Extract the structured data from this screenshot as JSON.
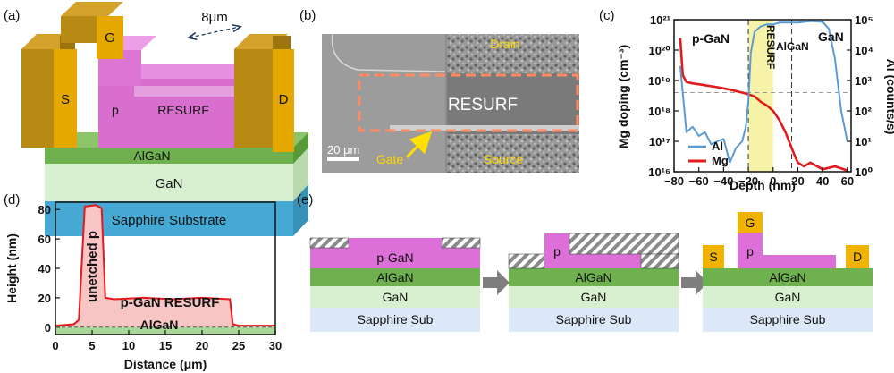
{
  "panels": {
    "a": {
      "letter": "(a)",
      "layers": {
        "substrate": "Sapphire Substrate",
        "gan": "GaN",
        "algan": "AlGaN",
        "resurf": "RESURF",
        "p": "p"
      },
      "contacts": {
        "source": "S",
        "gate": "G",
        "drain": "D"
      },
      "dimension": "8μm",
      "colors": {
        "substrate": "#4fb4dd",
        "gan": "#d8f0cf",
        "algan": "#6fb04f",
        "pgan": "#d86fce",
        "metal": "#f0b400",
        "metal_side": "#b88a13"
      }
    },
    "b": {
      "letter": "(b)",
      "labels": {
        "drain": "Drain",
        "resurf": "RESURF",
        "gate": "Gate",
        "source": "Source"
      },
      "scalebar": "20 μm",
      "colors": {
        "label": "#ffd800",
        "box": "#ff8a65"
      }
    },
    "c": {
      "letter": "(c)",
      "region_labels": {
        "pgan": "p-GaN",
        "resurf": "RESURF",
        "algan": "AlGaN",
        "gan": "GaN"
      },
      "ylabel_left": "Mg doping (cm⁻³)",
      "ylabel_right": "Al (counts/s)",
      "xlabel": "Depth (nm)",
      "left_ticks": [
        "10²¹",
        "10²⁰",
        "10¹⁹",
        "10¹⁸",
        "10¹⁷",
        "10¹⁶"
      ],
      "right_ticks": [
        "10⁵",
        "10⁴",
        "10³",
        "10²",
        "10¹",
        "10⁰"
      ],
      "x_ticks": [
        "−80",
        "−60",
        "−40",
        "−20",
        "0",
        "20",
        "40",
        "60"
      ],
      "legend": [
        {
          "name": "Al",
          "color": "#5b9bd5"
        },
        {
          "name": "Mg",
          "color": "#e31a1c"
        }
      ],
      "resurf_band_color": "#f6f3a8"
    },
    "d": {
      "letter": "(d)",
      "ylabel": "Height (nm)",
      "xlabel": "Distance (μm)",
      "x_ticks": [
        "0",
        "5",
        "10",
        "15",
        "20",
        "25",
        "30"
      ],
      "y_ticks": [
        "0",
        "20",
        "40",
        "60",
        "80"
      ],
      "annotations": {
        "unetched": "unetched p",
        "resurf": "p-GaN RESURF",
        "algan": "AlGaN"
      },
      "colors": {
        "line": "#e31a1c",
        "fill": "#f7c6c4",
        "algan": "#a9d89a"
      }
    },
    "e": {
      "letter": "(e)",
      "step1": {
        "pgan": "p-GaN",
        "algan": "AlGaN",
        "gan": "GaN",
        "substrate": "Sapphire Sub"
      },
      "step2": {
        "p": "p",
        "algan": "AlGaN",
        "gan": "GaN",
        "substrate": "Sapphire Sub"
      },
      "step3": {
        "gate": "G",
        "p": "p",
        "source": "S",
        "drain": "D",
        "algan": "AlGaN",
        "gan": "GaN",
        "substrate": "Sapphire Sub"
      },
      "colors": {
        "pgan": "#dd6fd8",
        "algan": "#6fb04f",
        "gan": "#d8f0cf",
        "substrate": "#dce8f8",
        "metal": "#f0b400",
        "arrow": "#7f7f7f"
      }
    }
  },
  "chart_data": [
    {
      "type": "line",
      "panel": "c",
      "x_label": "Depth (nm)",
      "xlim": [
        -80,
        63
      ],
      "y_left_label": "Mg doping (cm⁻³)",
      "y_left_log_range": [
        1e+16,
        1e+21
      ],
      "y_right_label": "Al (counts/s)",
      "y_right_log_range": [
        1,
        100000
      ],
      "highlight_band": [
        -20,
        0
      ],
      "dashed_lines_x": [
        -20,
        15
      ],
      "dashed_line_y_mg": 4e+18,
      "series": [
        {
          "name": "Mg",
          "axis": "left",
          "x": [
            -75,
            -73,
            -70,
            -65,
            -60,
            -55,
            -50,
            -45,
            -40,
            -35,
            -30,
            -25,
            -20,
            -15,
            -10,
            -5,
            0,
            5,
            10,
            15,
            18,
            20,
            25,
            30,
            40,
            50,
            60
          ],
          "y": [
            2.5e+20,
            1.5e+19,
            9e+18,
            8e+18,
            7.5e+18,
            7e+18,
            6.5e+18,
            6e+18,
            5.5e+18,
            5e+18,
            4.5e+18,
            4e+18,
            3.5e+18,
            3e+18,
            2e+18,
            1.5e+18,
            1e+18,
            5e+17,
            2e+17,
            6e+16,
            3e+16,
            2e+16,
            1.5e+16,
            2e+16,
            1.2e+16,
            1.5e+16,
            1.1e+16
          ]
        },
        {
          "name": "Al",
          "axis": "right",
          "x": [
            -75,
            -70,
            -65,
            -60,
            -55,
            -50,
            -45,
            -40,
            -35,
            -30,
            -25,
            -22,
            -20,
            -18,
            -15,
            -10,
            -5,
            0,
            5,
            10,
            15,
            20,
            30,
            40,
            45,
            50,
            55,
            60
          ],
          "y": [
            3000,
            20,
            30,
            15,
            20,
            8,
            10,
            12,
            2,
            6,
            10,
            30,
            200,
            8000,
            40000,
            60000,
            70000,
            70000,
            80000,
            80000,
            80000,
            80000,
            90000,
            85000,
            50000,
            5000,
            100,
            10
          ]
        }
      ]
    },
    {
      "type": "area",
      "panel": "d",
      "x_label": "Distance (μm)",
      "y_label": "Height (nm)",
      "xlim": [
        0,
        30
      ],
      "ylim": [
        -5,
        85
      ],
      "x": [
        0,
        2.5,
        3.2,
        4.0,
        5.5,
        6.3,
        6.8,
        8,
        12,
        16,
        20,
        23.8,
        24.2,
        25,
        30
      ],
      "y": [
        1,
        2,
        5,
        82,
        83,
        81,
        20,
        19,
        20,
        19,
        20,
        19,
        2,
        1,
        1
      ]
    }
  ]
}
